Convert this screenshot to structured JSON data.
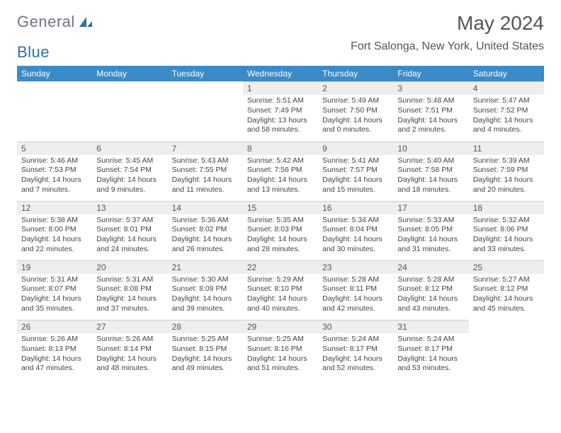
{
  "logo": {
    "part1": "General",
    "part2": "Blue"
  },
  "title": "May 2024",
  "subtitle": "Fort Salonga, New York, United States",
  "colors": {
    "header_bg": "#3b8bc9",
    "header_fg": "#ffffff",
    "daynum_bg": "#eeeeee",
    "border": "#c9d2da",
    "text": "#444444",
    "logo_gray": "#6b7783",
    "logo_blue": "#2e6fa7"
  },
  "weekdays": [
    "Sunday",
    "Monday",
    "Tuesday",
    "Wednesday",
    "Thursday",
    "Friday",
    "Saturday"
  ],
  "weeks": [
    [
      null,
      null,
      null,
      {
        "n": "1",
        "sr": "5:51 AM",
        "ss": "7:49 PM",
        "dl": "13 hours and 58 minutes."
      },
      {
        "n": "2",
        "sr": "5:49 AM",
        "ss": "7:50 PM",
        "dl": "14 hours and 0 minutes."
      },
      {
        "n": "3",
        "sr": "5:48 AM",
        "ss": "7:51 PM",
        "dl": "14 hours and 2 minutes."
      },
      {
        "n": "4",
        "sr": "5:47 AM",
        "ss": "7:52 PM",
        "dl": "14 hours and 4 minutes."
      }
    ],
    [
      {
        "n": "5",
        "sr": "5:46 AM",
        "ss": "7:53 PM",
        "dl": "14 hours and 7 minutes."
      },
      {
        "n": "6",
        "sr": "5:45 AM",
        "ss": "7:54 PM",
        "dl": "14 hours and 9 minutes."
      },
      {
        "n": "7",
        "sr": "5:43 AM",
        "ss": "7:55 PM",
        "dl": "14 hours and 11 minutes."
      },
      {
        "n": "8",
        "sr": "5:42 AM",
        "ss": "7:56 PM",
        "dl": "14 hours and 13 minutes."
      },
      {
        "n": "9",
        "sr": "5:41 AM",
        "ss": "7:57 PM",
        "dl": "14 hours and 15 minutes."
      },
      {
        "n": "10",
        "sr": "5:40 AM",
        "ss": "7:58 PM",
        "dl": "14 hours and 18 minutes."
      },
      {
        "n": "11",
        "sr": "5:39 AM",
        "ss": "7:59 PM",
        "dl": "14 hours and 20 minutes."
      }
    ],
    [
      {
        "n": "12",
        "sr": "5:38 AM",
        "ss": "8:00 PM",
        "dl": "14 hours and 22 minutes."
      },
      {
        "n": "13",
        "sr": "5:37 AM",
        "ss": "8:01 PM",
        "dl": "14 hours and 24 minutes."
      },
      {
        "n": "14",
        "sr": "5:36 AM",
        "ss": "8:02 PM",
        "dl": "14 hours and 26 minutes."
      },
      {
        "n": "15",
        "sr": "5:35 AM",
        "ss": "8:03 PM",
        "dl": "14 hours and 28 minutes."
      },
      {
        "n": "16",
        "sr": "5:34 AM",
        "ss": "8:04 PM",
        "dl": "14 hours and 30 minutes."
      },
      {
        "n": "17",
        "sr": "5:33 AM",
        "ss": "8:05 PM",
        "dl": "14 hours and 31 minutes."
      },
      {
        "n": "18",
        "sr": "5:32 AM",
        "ss": "8:06 PM",
        "dl": "14 hours and 33 minutes."
      }
    ],
    [
      {
        "n": "19",
        "sr": "5:31 AM",
        "ss": "8:07 PM",
        "dl": "14 hours and 35 minutes."
      },
      {
        "n": "20",
        "sr": "5:31 AM",
        "ss": "8:08 PM",
        "dl": "14 hours and 37 minutes."
      },
      {
        "n": "21",
        "sr": "5:30 AM",
        "ss": "8:09 PM",
        "dl": "14 hours and 39 minutes."
      },
      {
        "n": "22",
        "sr": "5:29 AM",
        "ss": "8:10 PM",
        "dl": "14 hours and 40 minutes."
      },
      {
        "n": "23",
        "sr": "5:28 AM",
        "ss": "8:11 PM",
        "dl": "14 hours and 42 minutes."
      },
      {
        "n": "24",
        "sr": "5:28 AM",
        "ss": "8:12 PM",
        "dl": "14 hours and 43 minutes."
      },
      {
        "n": "25",
        "sr": "5:27 AM",
        "ss": "8:12 PM",
        "dl": "14 hours and 45 minutes."
      }
    ],
    [
      {
        "n": "26",
        "sr": "5:26 AM",
        "ss": "8:13 PM",
        "dl": "14 hours and 47 minutes."
      },
      {
        "n": "27",
        "sr": "5:26 AM",
        "ss": "8:14 PM",
        "dl": "14 hours and 48 minutes."
      },
      {
        "n": "28",
        "sr": "5:25 AM",
        "ss": "8:15 PM",
        "dl": "14 hours and 49 minutes."
      },
      {
        "n": "29",
        "sr": "5:25 AM",
        "ss": "8:16 PM",
        "dl": "14 hours and 51 minutes."
      },
      {
        "n": "30",
        "sr": "5:24 AM",
        "ss": "8:17 PM",
        "dl": "14 hours and 52 minutes."
      },
      {
        "n": "31",
        "sr": "5:24 AM",
        "ss": "8:17 PM",
        "dl": "14 hours and 53 minutes."
      },
      null
    ]
  ],
  "labels": {
    "sunrise": "Sunrise:",
    "sunset": "Sunset:",
    "daylight": "Daylight:"
  }
}
